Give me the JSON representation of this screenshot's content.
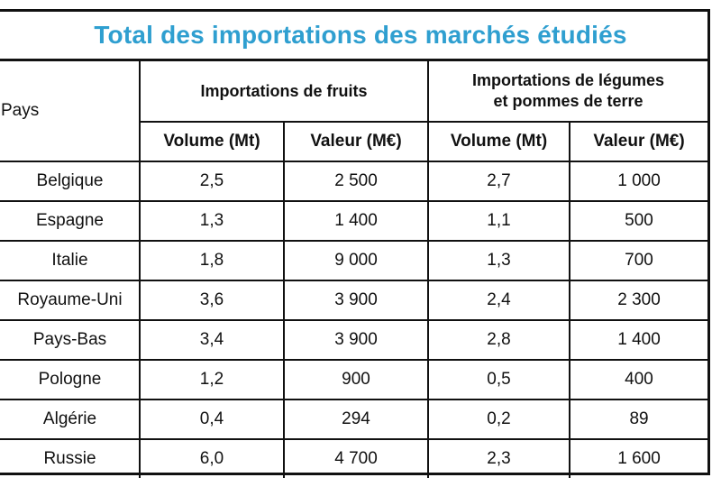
{
  "title": "Total des importations des marchés étudiés",
  "headers": {
    "pays": "Pays",
    "fruits": "Importations de fruits",
    "legumes_line1": "Importations de légumes",
    "legumes_line2": "et pommes de terre",
    "volume": "Volume (Mt)",
    "valeur": "Valeur (M€)"
  },
  "rows": [
    {
      "pays": "Belgique",
      "fruits_volume": "2,5",
      "fruits_valeur": "2 500",
      "legumes_volume": "2,7",
      "legumes_valeur": "1 000"
    },
    {
      "pays": "Espagne",
      "fruits_volume": "1,3",
      "fruits_valeur": "1 400",
      "legumes_volume": "1,1",
      "legumes_valeur": "500"
    },
    {
      "pays": "Italie",
      "fruits_volume": "1,8",
      "fruits_valeur": "9 000",
      "legumes_volume": "1,3",
      "legumes_valeur": "700"
    },
    {
      "pays": "Royaume-Uni",
      "fruits_volume": "3,6",
      "fruits_valeur": "3 900",
      "legumes_volume": "2,4",
      "legumes_valeur": "2 300"
    },
    {
      "pays": "Pays-Bas",
      "fruits_volume": "3,4",
      "fruits_valeur": "3 900",
      "legumes_volume": "2,8",
      "legumes_valeur": "1 400"
    },
    {
      "pays": "Pologne",
      "fruits_volume": "1,2",
      "fruits_valeur": "900",
      "legumes_volume": "0,5",
      "legumes_valeur": "400"
    },
    {
      "pays": "Algérie",
      "fruits_volume": "0,4",
      "fruits_valeur": "294",
      "legumes_volume": "0,2",
      "legumes_valeur": "89"
    },
    {
      "pays": "Russie",
      "fruits_volume": "6,0",
      "fruits_valeur": "4 700",
      "legumes_volume": "2,3",
      "legumes_valeur": "1 600"
    }
  ],
  "colors": {
    "title": "#2f9fd0",
    "border": "#111111"
  }
}
